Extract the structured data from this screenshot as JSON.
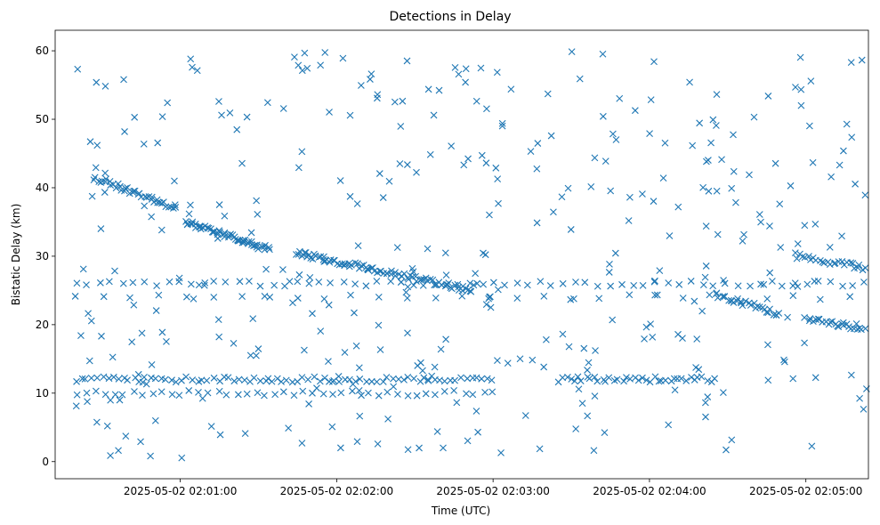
{
  "chart_data": {
    "type": "scatter",
    "title": "Detections in Delay",
    "xlabel": "Time (UTC)",
    "ylabel": "Bistatic Delay (km)",
    "marker": "x",
    "color": "#1f77b4",
    "grid": false,
    "legend": "none",
    "x_range": [
      "2025-05-02 02:00:12",
      "2025-05-02 02:05:24"
    ],
    "ylim": [
      -2.5,
      63
    ],
    "x_ticks": [
      "2025-05-02 02:01:00",
      "2025-05-02 02:02:00",
      "2025-05-02 02:03:00",
      "2025-05-02 02:04:00",
      "2025-05-02 02:05:00"
    ],
    "y_ticks": [
      "0",
      "10",
      "20",
      "30",
      "40",
      "50",
      "60"
    ],
    "x_tick_values": [
      60,
      120,
      180,
      240,
      300
    ],
    "y_tick_values": [
      0,
      10,
      20,
      30,
      40,
      50,
      60
    ],
    "series": [
      {
        "tracks": [
          {
            "t_start": 27,
            "t_end": 58,
            "y_start": 41.5,
            "y_end": 37.0,
            "count": 40
          },
          {
            "t_start": 62,
            "t_end": 94,
            "y_start": 35.0,
            "y_end": 31.0,
            "count": 55
          },
          {
            "t_start": 104,
            "t_end": 172,
            "y_start": 30.5,
            "y_end": 25.0,
            "count": 85
          },
          {
            "t_start": 265,
            "t_end": 290,
            "y_start": 24.5,
            "y_end": 21.5,
            "count": 30
          },
          {
            "t_start": 297,
            "t_end": 327,
            "y_start": 30.0,
            "y_end": 28.0,
            "count": 30
          },
          {
            "t_start": 300,
            "t_end": 327,
            "y_start": 21.0,
            "y_end": 19.0,
            "count": 30
          },
          {
            "t_start": 20,
            "t_end": 180,
            "y_start": 12.0,
            "y_end": 12.0,
            "count": 80
          },
          {
            "t_start": 205,
            "t_end": 265,
            "y_start": 12.0,
            "y_end": 12.0,
            "count": 40
          },
          {
            "t_start": 20,
            "t_end": 180,
            "y_start": 10.0,
            "y_end": 10.0,
            "count": 45
          },
          {
            "t_start": 20,
            "t_end": 327,
            "y_start": 26.0,
            "y_end": 26.0,
            "count": 70
          },
          {
            "t_start": 20,
            "t_end": 327,
            "y_start": 24.0,
            "y_end": 24.0,
            "count": 30
          }
        ],
        "scatter_count": 380,
        "scatter_t_range": [
          20,
          327
        ],
        "scatter_y_range": [
          0.5,
          60
        ],
        "seed": 20250502
      }
    ]
  }
}
